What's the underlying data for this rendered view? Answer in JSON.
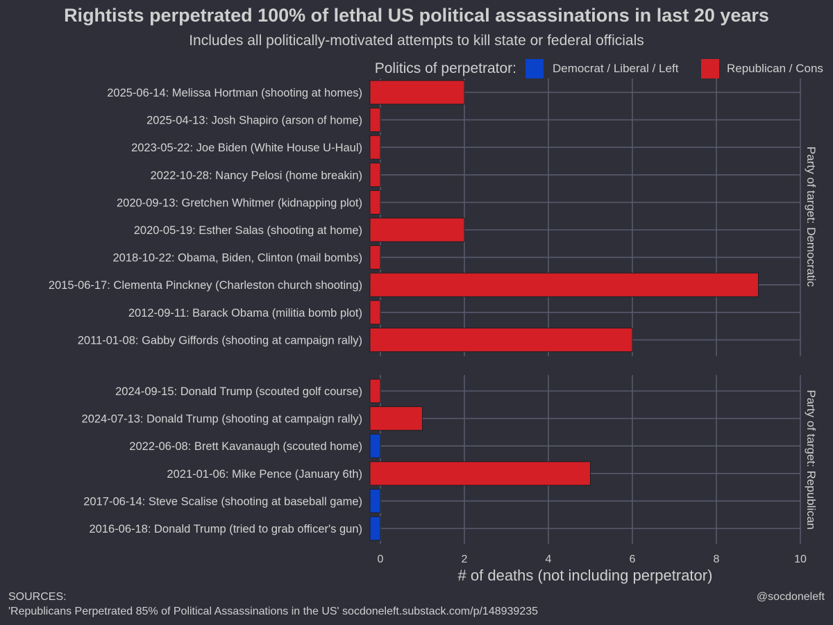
{
  "chart_data": {
    "type": "bar",
    "orientation": "horizontal",
    "title": "Rightists perpetrated 100% of lethal US political assassinations in last 20 years",
    "subtitle": "Includes all politically-motivated attempts to kill state or federal officials",
    "xlabel": "# of deaths (not including perpetrator)",
    "xlim": [
      0,
      10
    ],
    "xticks": [
      0,
      2,
      4,
      6,
      8,
      10
    ],
    "grid": true,
    "legend": {
      "title": "Politics of perpetrator:",
      "placement": "top",
      "entries": [
        {
          "label": "Democrat / Liberal / Left",
          "color": "#0a43c9"
        },
        {
          "label": "Republican / Cons",
          "color": "#d41f27"
        }
      ]
    },
    "panels": [
      {
        "strip": "Party of target: Democratic",
        "bars": [
          {
            "label": "2025-06-14: Melissa Hortman (shooting at homes)",
            "value": 2,
            "party": "Republican"
          },
          {
            "label": "2025-04-13: Josh Shapiro (arson of home)",
            "value": 0,
            "party": "Republican"
          },
          {
            "label": "2023-05-22: Joe Biden (White House U-Haul)",
            "value": 0,
            "party": "Republican"
          },
          {
            "label": "2022-10-28: Nancy Pelosi (home breakin)",
            "value": 0,
            "party": "Republican"
          },
          {
            "label": "2020-09-13: Gretchen Whitmer (kidnapping plot)",
            "value": 0,
            "party": "Republican"
          },
          {
            "label": "2020-05-19: Esther Salas (shooting at home)",
            "value": 2,
            "party": "Republican"
          },
          {
            "label": "2018-10-22: Obama, Biden, Clinton (mail bombs)",
            "value": 0,
            "party": "Republican"
          },
          {
            "label": "2015-06-17: Clementa Pinckney (Charleston church shooting)",
            "value": 9,
            "party": "Republican"
          },
          {
            "label": "2012-09-11: Barack Obama (militia bomb plot)",
            "value": 0,
            "party": "Republican"
          },
          {
            "label": "2011-01-08: Gabby Giffords (shooting at campaign rally)",
            "value": 6,
            "party": "Republican"
          }
        ]
      },
      {
        "strip": "Party of target: Republican",
        "bars": [
          {
            "label": "2024-09-15: Donald Trump (scouted golf course)",
            "value": 0,
            "party": "Republican"
          },
          {
            "label": "2024-07-13: Donald Trump (shooting at campaign rally)",
            "value": 1,
            "party": "Republican"
          },
          {
            "label": "2022-06-08: Brett Kavanaugh (scouted home)",
            "value": 0,
            "party": "Democrat"
          },
          {
            "label": "2021-01-06: Mike Pence (January 6th)",
            "value": 5,
            "party": "Republican"
          },
          {
            "label": "2017-06-14: Steve Scalise (shooting at baseball game)",
            "value": 0,
            "party": "Democrat"
          },
          {
            "label": "2016-06-18: Donald Trump (tried to grab officer's gun)",
            "value": 0,
            "party": "Democrat"
          }
        ]
      }
    ],
    "sources": {
      "heading": "SOURCES:",
      "text": "'Republicans Perpetrated 85% of Political Assassinations in the US' socdoneleft.substack.com/p/148939235"
    },
    "credit": "@socdoneleft"
  }
}
